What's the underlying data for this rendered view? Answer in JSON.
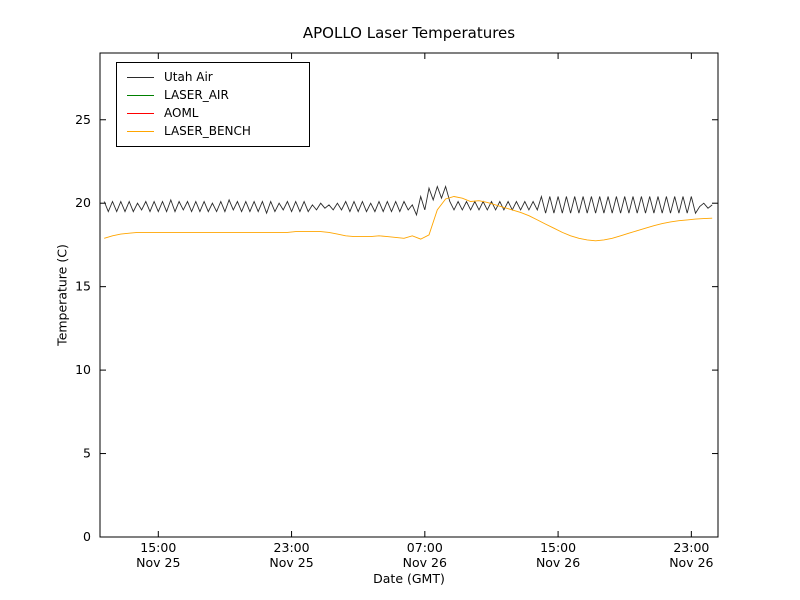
{
  "chart_data": {
    "type": "line",
    "title": "APOLLO Laser Temperatures",
    "xlabel": "Date (GMT)",
    "ylabel": "Temperature (C)",
    "xlim": [
      0.5,
      37.6
    ],
    "ylim": [
      0,
      29
    ],
    "grid": false,
    "legend_position": "upper-left",
    "yticks": [
      "0",
      "5",
      "10",
      "15",
      "20",
      "25"
    ],
    "ytick_values": [
      0,
      5,
      10,
      15,
      20,
      25
    ],
    "xticks": [
      {
        "x": 4,
        "time": "15:00",
        "date": "Nov 25"
      },
      {
        "x": 12,
        "time": "23:00",
        "date": "Nov 25"
      },
      {
        "x": 20,
        "time": "07:00",
        "date": "Nov 26"
      },
      {
        "x": 28,
        "time": "15:00",
        "date": "Nov 26"
      },
      {
        "x": 36,
        "time": "23:00",
        "date": "Nov 26"
      }
    ],
    "x_unit": "hours since Nov 25 11:00 GMT",
    "series": [
      {
        "name": "Utah Air",
        "color": "#2b2b2b",
        "x0": 0.75,
        "dx": 0.25,
        "values": [
          20.1,
          19.5,
          20.1,
          19.5,
          20.1,
          19.5,
          20.1,
          19.5,
          20.0,
          19.6,
          20.1,
          19.5,
          20.1,
          19.5,
          20.1,
          19.5,
          20.2,
          19.5,
          20.1,
          19.6,
          20.1,
          19.5,
          20.1,
          19.5,
          20.1,
          19.5,
          20.0,
          19.5,
          20.1,
          19.5,
          20.2,
          19.6,
          20.1,
          19.5,
          20.1,
          19.5,
          20.1,
          19.5,
          20.1,
          19.4,
          20.1,
          19.5,
          20.0,
          19.6,
          20.1,
          19.5,
          20.1,
          19.5,
          20.1,
          19.5,
          19.9,
          19.6,
          20.0,
          19.7,
          19.9,
          19.6,
          20.0,
          19.6,
          20.1,
          19.5,
          20.1,
          19.5,
          20.1,
          19.5,
          20.0,
          19.5,
          20.1,
          19.5,
          20.1,
          19.5,
          20.1,
          19.5,
          20.1,
          19.6,
          19.9,
          19.3,
          20.4,
          19.6,
          20.9,
          20.2,
          21.0,
          20.3,
          21.0,
          20.1,
          19.6,
          20.1,
          19.6,
          20.1,
          19.6,
          20.1,
          19.6,
          20.1,
          19.6,
          20.1,
          19.6,
          20.1,
          19.6,
          20.1,
          19.6,
          20.1,
          19.6,
          20.1,
          19.6,
          20.1,
          19.6,
          20.4,
          19.4,
          20.4,
          19.4,
          20.4,
          19.4,
          20.4,
          19.4,
          20.4,
          19.4,
          20.4,
          19.4,
          20.4,
          19.4,
          20.4,
          19.4,
          20.4,
          19.4,
          20.4,
          19.4,
          20.4,
          19.4,
          20.4,
          19.4,
          20.4,
          19.4,
          20.4,
          19.4,
          20.4,
          19.4,
          20.4,
          19.4,
          20.4,
          19.4,
          20.4,
          19.4,
          20.4,
          19.4,
          19.8,
          20.0,
          19.7,
          19.9
        ]
      },
      {
        "name": "LASER_AIR",
        "color": "#008000",
        "x0": 0.75,
        "dx": 0.5,
        "values": []
      },
      {
        "name": "AOML",
        "color": "#ff0000",
        "x0": 0.75,
        "dx": 0.5,
        "values": []
      },
      {
        "name": "LASER_BENCH",
        "color": "#ffa500",
        "x0": 0.75,
        "dx": 0.5,
        "values": [
          17.9,
          18.05,
          18.15,
          18.2,
          18.25,
          18.25,
          18.25,
          18.25,
          18.25,
          18.25,
          18.25,
          18.25,
          18.25,
          18.25,
          18.25,
          18.25,
          18.25,
          18.25,
          18.25,
          18.25,
          18.25,
          18.25,
          18.25,
          18.3,
          18.3,
          18.3,
          18.3,
          18.25,
          18.15,
          18.05,
          18.0,
          18.0,
          18.0,
          18.05,
          18.0,
          17.95,
          17.9,
          18.05,
          17.85,
          18.1,
          19.6,
          20.25,
          20.4,
          20.3,
          20.1,
          20.15,
          20.05,
          19.9,
          19.75,
          19.6,
          19.45,
          19.25,
          19.0,
          18.75,
          18.5,
          18.25,
          18.05,
          17.9,
          17.8,
          17.75,
          17.8,
          17.9,
          18.05,
          18.2,
          18.35,
          18.5,
          18.65,
          18.78,
          18.88,
          18.95,
          19.0,
          19.05,
          19.08,
          19.1
        ]
      }
    ]
  }
}
